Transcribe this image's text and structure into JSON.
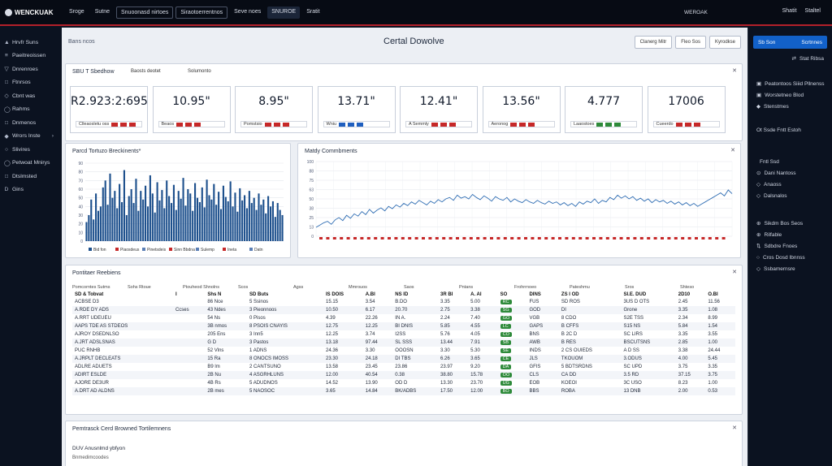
{
  "topbar": {
    "brand": "WENCKUAK",
    "nav": [
      "Sroge",
      "Sutne",
      "Snuoonasd nirtoes",
      "Siraotoerrentnos",
      "Seve noes",
      "SNUROE",
      "Sratit"
    ],
    "mid": "WEROAK",
    "right": [
      "Shatit",
      "Staltel"
    ]
  },
  "sidebar": {
    "items": [
      {
        "icon": "▲",
        "label": "Hrvfr Suns"
      },
      {
        "icon": "≡",
        "label": "Paeitreoissen"
      },
      {
        "icon": "▽",
        "label": "Dnrenroes"
      },
      {
        "icon": "□",
        "label": "Ftnrsos"
      },
      {
        "icon": "◇",
        "label": "Cbnt was"
      },
      {
        "icon": "◯",
        "label": "Rahms"
      },
      {
        "icon": "□",
        "label": "Dnmenos"
      },
      {
        "icon": "◆",
        "label": "Wrors Inste",
        "chev": "›"
      },
      {
        "icon": "○",
        "label": "Slivires"
      },
      {
        "icon": "◯",
        "label": "Petwoat Mnirys"
      },
      {
        "icon": "□",
        "label": "Dtslmsted"
      },
      {
        "icon": "D",
        "label": "Gins"
      }
    ]
  },
  "header": {
    "breadcrumb": "Bans ncos",
    "title": "Certal Dowolve",
    "buttons": [
      "Clanerg Mitr",
      "Fleo Sos",
      "Kyrodkse"
    ]
  },
  "summary": {
    "title": "SBU T Sbedhow",
    "tag1": "Baosts deotet",
    "tag2": "Solumonto",
    "kpis": [
      {
        "value": "R2.923:2:695",
        "sub": "Clleaosletu oss"
      },
      {
        "value": "10.95\"",
        "sub": "Beaos"
      },
      {
        "value": "8.95\"",
        "sub": "Pomstsio"
      },
      {
        "value": "13.71\"",
        "sub": "Wniu"
      },
      {
        "value": "12.41\"",
        "sub": "A Semmly"
      },
      {
        "value": "13.56\"",
        "sub": "Aeronog"
      },
      {
        "value": "4.777",
        "sub": "Laaostoes"
      },
      {
        "value": "17006",
        "sub": "Cueerdo"
      }
    ]
  },
  "bar_card": {
    "title": "Parcd Tortuzo Breckinents*",
    "legend": [
      "Bid fon",
      "Piaosdeus",
      "Pinetsdeis",
      "Sinn Bbdna",
      "Sulemp",
      "Ineta",
      "Datn"
    ]
  },
  "line_card": {
    "title": "Matdy Commbments"
  },
  "table_card": {
    "title": "Pontitaer Reebiens",
    "subheads": [
      "Pomcorntes Sutms",
      "Sohs Rtoue",
      "Ptouheod Shnolns",
      "Scos",
      "Agss",
      "Mmrouos",
      "Saos",
      "Pntans",
      "Frohrrnoeo",
      "Pateshmu",
      "Sros",
      "Shteso"
    ],
    "columns": [
      "SD & Tobvat",
      "I",
      "Shs N",
      "SD Buts",
      "IS DOIS",
      "A.BI",
      "NS ID",
      "3R BI",
      "A. AI",
      "SO",
      "DINS",
      "ZS I OD",
      "SI.E. DUD",
      "2D10",
      "O.BI"
    ],
    "rows": [
      [
        "ACBSE D3",
        "",
        "86 Nce",
        "5 Ssinos",
        "15.15",
        "3.54",
        "B.DO",
        "3.35",
        "5.00",
        "RC",
        "FUS",
        "SD ROS",
        "3US D OTS",
        "2.45",
        "11.56"
      ],
      [
        "A.RDE DY ADS",
        "Ccses",
        "43 Ndes",
        "3 Pieonnoos",
        "10.50",
        "6.17",
        "20.70",
        "2.75",
        "3.38",
        "SG",
        "GOD",
        "DI",
        "Grone",
        "3.35",
        "1.08"
      ],
      [
        "A.RRT UDEUEU",
        "",
        "54 Ns",
        "0 Pisos",
        "4.39",
        "22.26",
        "IN A.",
        "2.24",
        "7.40",
        "GO",
        "VGB",
        "8 CDO",
        "S2E TSS",
        "2.34",
        "8.99"
      ],
      [
        "AAPS TDE AS STDEOS",
        "",
        "3B nmos",
        "8 PSOIS CNAYIS",
        "12.75",
        "12.25",
        "BI DNIS",
        "5.85",
        "4.55",
        "LC",
        "GAPS",
        "B CFFS",
        "S15 NS",
        "5.84",
        "1.54"
      ],
      [
        "AJROY DSEDNLSO",
        "",
        "205 Ens",
        "3 Inn5",
        "12.25",
        "3.74",
        "I2SS",
        "5.76",
        "4.05",
        "CO",
        "BNS",
        "B 2C D",
        "SC LIRS",
        "3.35",
        "3.55"
      ],
      [
        "A.JRT ADSLSNAS",
        "",
        "G D",
        "3 Pastos",
        "13.18",
        "97.44",
        "SL SSS",
        "13.44",
        "7.91",
        "SB",
        "AWB",
        "B RES",
        "BSCUTSNS",
        "2.85",
        "1.00"
      ],
      [
        "PUC RNHB",
        "",
        "52 Vlns",
        "1 ADNS",
        "24.36",
        "3.30",
        "OOOSN",
        "3.30",
        "5.30",
        "SE",
        "INDS",
        "2 CS OUIEDS",
        "A D SS",
        "3.38",
        "24.44"
      ],
      [
        "A.JRPLT DECLEATS",
        "",
        "15 Ra",
        "8 ONOCS IMOSS",
        "23.30",
        "24.18",
        "DI TBS",
        "6.26",
        "3.65",
        "CE",
        "JLS",
        "TKOUOM",
        "3.ODUS",
        "4.00",
        "5.45"
      ],
      [
        "ADLRE ADUETS",
        "",
        "B9 lm",
        "2 CANTSUNO",
        "13.58",
        "23.45",
        "23.86",
        "23.97",
        "9.20",
        "DA",
        "GFIS",
        "5 BDTSRDNS",
        "SC UPD",
        "3.75",
        "3.35"
      ],
      [
        "ADIRT ESLDE",
        "",
        "2B Nu",
        "4 ASGRHLUNS",
        "12.00",
        "40.54",
        "0.38",
        "38.80",
        "15.78",
        "OO",
        "CLS",
        "CA DD",
        "3.5 RD",
        "37.15",
        "3.75"
      ],
      [
        "AJORE DE3UR",
        "",
        "4B Rs",
        "5 ADUDNOS",
        "14.52",
        "13.90",
        "OD D",
        "13.30",
        "23.70",
        "UG",
        "EOB",
        "KOEOI",
        "3C USO",
        "8.23",
        "1.00"
      ],
      [
        "A.DRT AD ALDNS",
        "",
        "2B mes",
        "5 NAOSOC",
        "3.65",
        "14.84",
        "BK/ADBS",
        "17.50",
        "12.00",
        "BO",
        "BBS",
        "ROBA",
        "13 DNB",
        "2.00",
        "0.53"
      ]
    ]
  },
  "bottom_card": {
    "title": "Pemtrasck Cerd Browned Tortilemnens",
    "line1": "DUV Anusnlmd ybfyon",
    "line2": "Bnmedimcoodes"
  },
  "rpanel": {
    "button": {
      "left": "Sb Son",
      "right": "Scrtnnes"
    },
    "link": "Stat Ribsa",
    "group1": [
      {
        "icon": "▣",
        "label": "Peatontoos Siiid Pllnenss"
      },
      {
        "icon": "▣",
        "label": "Worstetneo Blod"
      },
      {
        "icon": "◆",
        "label": "Stenstmes"
      }
    ],
    "single": "Ot Ssde Fntt Estoh",
    "group2": [
      {
        "icon": "",
        "label": "Fntl Ssd"
      },
      {
        "icon": "⊙",
        "label": "Dani Nantoss"
      },
      {
        "icon": "◇",
        "label": "Anaoss"
      },
      {
        "icon": "◇",
        "label": "Dalsnalos"
      }
    ],
    "group3": [
      {
        "icon": "⊕",
        "label": "Sikdm Bos Seos"
      },
      {
        "icon": "⊕",
        "label": "Rilfable"
      },
      {
        "icon": "⇅",
        "label": "Sdbdre Fnoes"
      },
      {
        "icon": "○",
        "label": "Cros Dosd Ibnnss"
      },
      {
        "icon": "◇",
        "label": "Ssbamernsre"
      }
    ]
  },
  "chart_data": [
    {
      "type": "bar",
      "title": "Parcd Tortuzo Breckinents*",
      "ylim": [
        0,
        90
      ],
      "series": [
        {
          "name": "Bid fon",
          "values": [
            22,
            30,
            48,
            25,
            55,
            35,
            40,
            62,
            70,
            42,
            78,
            50,
            58,
            38,
            66,
            45,
            82,
            30,
            52,
            60,
            44,
            72,
            35,
            58,
            48,
            64,
            40,
            76,
            55,
            33,
            68,
            47,
            59,
            38,
            70,
            52,
            44,
            65,
            36,
            58,
            49,
            73,
            41,
            60,
            55,
            35,
            67,
            50,
            45,
            62,
            39,
            71,
            53,
            48,
            66,
            42,
            57,
            37,
            64,
            51,
            46,
            69,
            40,
            56,
            34,
            61,
            47,
            53,
            38,
            58,
            44,
            50,
            36,
            55,
            42,
            48,
            32,
            52,
            40,
            46,
            28,
            44,
            36,
            30
          ]
        }
      ],
      "legend": [
        "Bid fon",
        "Piaosdeus",
        "Pinetsdeis",
        "Sinn Bbdna",
        "Sulemp",
        "Ineta",
        "Datn"
      ],
      "grid": true
    },
    {
      "type": "line",
      "title": "Matdy Commbments",
      "ylim": [
        0,
        100
      ],
      "series": [
        {
          "name": "",
          "values": [
            12,
            15,
            18,
            20,
            16,
            22,
            25,
            21,
            28,
            24,
            30,
            27,
            33,
            29,
            36,
            31,
            35,
            38,
            34,
            40,
            37,
            42,
            39,
            44,
            41,
            46,
            43,
            48,
            45,
            42,
            47,
            44,
            49,
            46,
            50,
            52,
            48,
            55,
            51,
            53,
            50,
            56,
            52,
            49,
            54,
            51,
            47,
            53,
            50,
            48,
            52,
            46,
            50,
            47,
            45,
            49,
            46,
            44,
            48,
            45,
            43,
            47,
            44,
            46,
            42,
            45,
            41,
            44,
            40,
            46,
            43,
            47,
            45,
            50,
            44,
            48,
            46,
            52,
            49,
            55,
            51,
            54,
            50,
            53,
            48,
            51,
            47,
            50,
            45,
            49,
            46,
            48,
            44,
            47,
            43,
            46,
            42,
            45,
            41,
            44,
            40,
            43,
            46,
            49,
            52,
            55,
            58,
            54,
            62,
            57
          ]
        }
      ],
      "grid": true
    }
  ]
}
